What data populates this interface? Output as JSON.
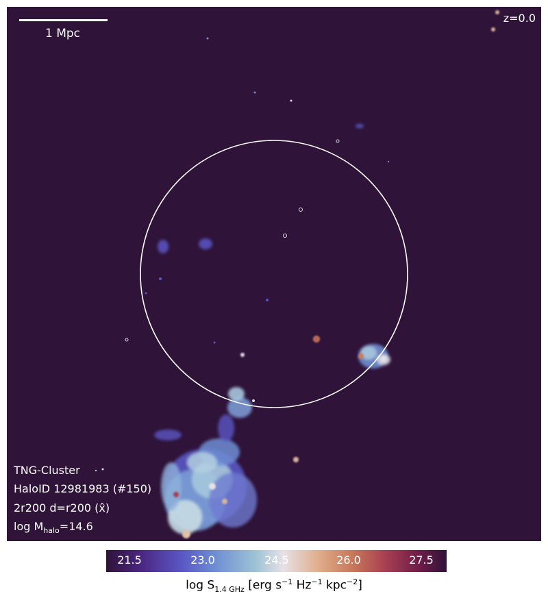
{
  "scalebar": {
    "label": "1 Mpc"
  },
  "redshift": "z=0.0",
  "info": {
    "simulation": "TNG-Cluster",
    "halo": "HaloID 12981983 (#150)",
    "aperture_prefix": "2r200 d=r200 (",
    "aperture_axis": "x̂",
    "aperture_suffix": ")",
    "mass_prefix": "log M",
    "mass_sub": "halo",
    "mass_suffix": "=14.6"
  },
  "colorbar": {
    "ticks": [
      "21.5",
      "23.0",
      "24.5",
      "26.0",
      "27.5"
    ],
    "label_prefix": "log S",
    "label_sub": "1.4 GHz",
    "label_units_a": " [erg s",
    "exp1": "−1",
    "label_units_b": " Hz",
    "exp2": "−1",
    "label_units_c": " kpc",
    "exp3": "−2",
    "label_units_d": "]"
  },
  "colors": {
    "background": "#2f1339",
    "cmap_low": "#5a56c4",
    "cmap_mid": "#e6e1e6",
    "cmap_high": "#a83f52",
    "circle": "#ffffff"
  }
}
